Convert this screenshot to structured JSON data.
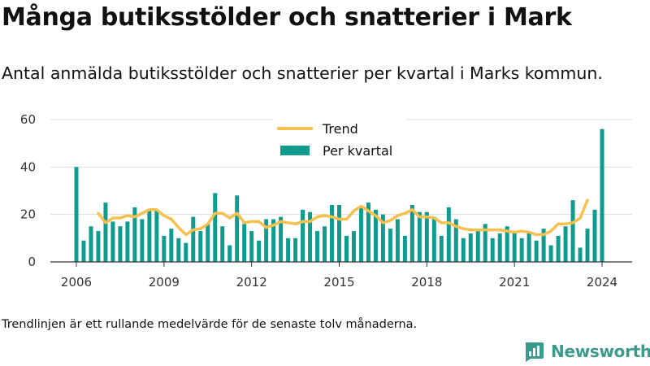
{
  "header": {
    "title": "Många butiksstölder och snatterier i Mark",
    "subtitle": "Antal anmälda butiksstölder och snatterier per kvartal i Marks kommun."
  },
  "footer": {
    "note": "Trendlinjen är ett rullande medelvärde för de senaste tolv månaderna.",
    "brand": "Newsworthy"
  },
  "colors": {
    "bars": "#0f9c8f",
    "trend": "#f5c04e",
    "brand": "#3a9a8c"
  },
  "chart_data": {
    "type": "bar",
    "x_start": 2006.0,
    "x_step": 0.25,
    "xticks": [
      2006,
      2009,
      2012,
      2015,
      2018,
      2021,
      2024
    ],
    "xtick_labels": [
      "2006",
      "2009",
      "2012",
      "2015",
      "2018",
      "2021",
      "2024"
    ],
    "ylim": [
      0,
      60
    ],
    "yticks": [
      0,
      20,
      40,
      60
    ],
    "ytick_labels": [
      "0",
      "20",
      "40",
      "60"
    ],
    "grid": "horizontal",
    "legend_position": "top-center",
    "series": [
      {
        "name": "Per kvartal",
        "type": "bar",
        "values": [
          40,
          9,
          15,
          13,
          25,
          17,
          15,
          17,
          23,
          18,
          22,
          22,
          11,
          14,
          10,
          8,
          19,
          13,
          16,
          29,
          15,
          7,
          28,
          16,
          13,
          9,
          18,
          18,
          19,
          10,
          10,
          22,
          21,
          13,
          15,
          24,
          24,
          11,
          13,
          23,
          25,
          22,
          20,
          14,
          18,
          11,
          24,
          21,
          21,
          19,
          11,
          23,
          18,
          10,
          12,
          13,
          16,
          10,
          12,
          15,
          13,
          10,
          12,
          9,
          14,
          7,
          11,
          15,
          26,
          6,
          14,
          22,
          56
        ]
      },
      {
        "name": "Trend",
        "type": "line",
        "x_start": 2006.75,
        "values": [
          20.5,
          16.5,
          18.5,
          18.5,
          19.5,
          19,
          20.5,
          22,
          22,
          19.5,
          18,
          14.5,
          11.5,
          13.5,
          14,
          16,
          20.5,
          20.5,
          18.5,
          20.5,
          16.5,
          17,
          17,
          14.5,
          15.5,
          17,
          16.5,
          16,
          17,
          17,
          19,
          19.5,
          19,
          18,
          18,
          21.5,
          23.5,
          21.5,
          19.5,
          16.5,
          17.5,
          19.5,
          20.5,
          22,
          19,
          19,
          18.5,
          16.5,
          16.5,
          15,
          14,
          13.5,
          13.5,
          13.5,
          13.5,
          13.5,
          13,
          12.5,
          13,
          12.5,
          11.5,
          11.5,
          13,
          16,
          16,
          16.5,
          18.5,
          26
        ]
      }
    ]
  }
}
